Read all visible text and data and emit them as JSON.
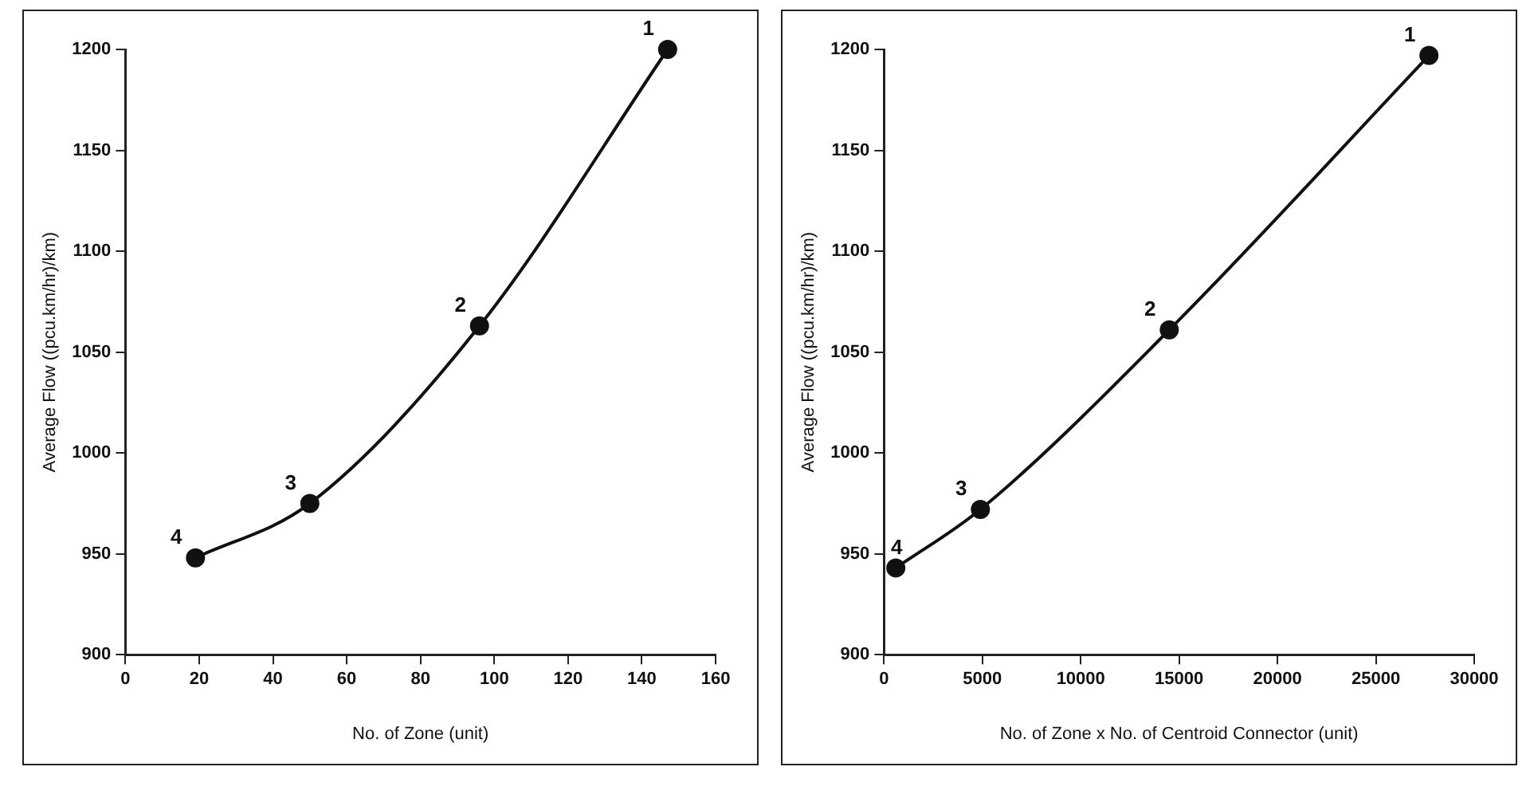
{
  "chart_data": [
    {
      "type": "line",
      "xlabel": "No. of Zone (unit)",
      "ylabel": "Average Flow ((pcu.km/hr)/km)",
      "x": [
        19,
        50,
        96,
        147
      ],
      "series": [
        {
          "color": "#111111",
          "values": [
            948,
            975,
            1063,
            1200
          ]
        }
      ],
      "xlim": [
        0,
        160
      ],
      "xticks": [
        0,
        20,
        40,
        60,
        80,
        100,
        120,
        140,
        160
      ],
      "ylim": [
        900,
        1200
      ],
      "yticks": [
        900,
        950,
        1000,
        1050,
        1100,
        1150,
        1200
      ],
      "grid": false,
      "legend": false,
      "marker": "circle",
      "line_style": "solid",
      "annotations": [
        {
          "text": "4",
          "x": 19,
          "y": 948
        },
        {
          "text": "3",
          "x": 50,
          "y": 975
        },
        {
          "text": "2",
          "x": 96,
          "y": 1063
        },
        {
          "text": "1",
          "x": 147,
          "y": 1200
        }
      ]
    },
    {
      "type": "line",
      "xlabel": "No. of Zone x No. of Centroid Connector (unit)",
      "ylabel": "Average Flow ((pcu.km/hr)/km)",
      "x": [
        600,
        4900,
        14500,
        27700
      ],
      "series": [
        {
          "color": "#111111",
          "values": [
            943,
            972,
            1061,
            1197
          ]
        }
      ],
      "xlim": [
        0,
        30000
      ],
      "xticks": [
        0,
        5000,
        10000,
        15000,
        20000,
        25000,
        30000
      ],
      "ylim": [
        900,
        1200
      ],
      "yticks": [
        900,
        950,
        1000,
        1050,
        1100,
        1150,
        1200
      ],
      "grid": false,
      "legend": false,
      "marker": "circle",
      "line_style": "solid",
      "annotations": [
        {
          "text": "4",
          "x": 600,
          "y": 943
        },
        {
          "text": "3",
          "x": 4900,
          "y": 972
        },
        {
          "text": "2",
          "x": 14500,
          "y": 1061
        },
        {
          "text": "1",
          "x": 27700,
          "y": 1197
        }
      ]
    }
  ]
}
